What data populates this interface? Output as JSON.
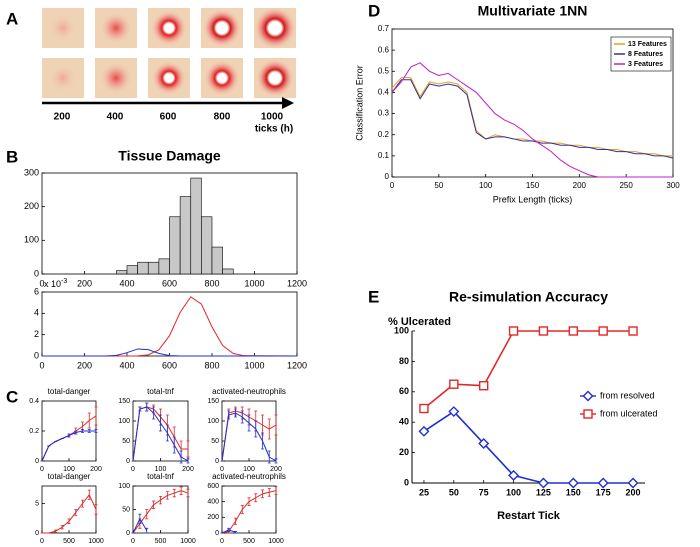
{
  "panel_labels": [
    "A",
    "B",
    "C",
    "D",
    "E"
  ],
  "timeline": {
    "ticks": [
      200,
      400,
      600,
      800,
      1000
    ],
    "label": "ticks (h)"
  },
  "chart_data": [
    {
      "type": "histogram",
      "title": "Tissue Damage",
      "bins": [
        350,
        400,
        450,
        500,
        550,
        600,
        650,
        700,
        750,
        800,
        850,
        900
      ],
      "values": [
        10,
        25,
        35,
        35,
        45,
        170,
        230,
        285,
        170,
        80,
        15
      ],
      "color": "#c8c8c8",
      "xlim": [
        0,
        1200
      ],
      "xticks": [
        0,
        200,
        400,
        600,
        800,
        1000,
        1200
      ],
      "ylim": [
        0,
        300
      ],
      "yticks": [
        0,
        100,
        200,
        300
      ]
    },
    {
      "type": "line",
      "y_multiplier": "x 10",
      "y_multiplier_exp": "-3",
      "x": [
        0,
        300,
        350,
        400,
        450,
        500,
        550,
        600,
        650,
        700,
        750,
        800,
        850,
        900,
        950,
        1200
      ],
      "series": [
        {
          "color": "#e02828",
          "values": [
            0,
            0,
            0,
            0.001,
            0.014,
            0.11,
            0.58,
            1.9,
            4.08,
            5.55,
            4.87,
            2.73,
            0.98,
            0.23,
            0.03,
            0
          ]
        },
        {
          "color": "#2030d0",
          "values": [
            0,
            0.004,
            0.06,
            0.31,
            0.66,
            0.6,
            0.25,
            0.04,
            0,
            0,
            0,
            0,
            0,
            0,
            0,
            0
          ]
        }
      ],
      "xlim": [
        0,
        1200
      ],
      "xticks": [
        0,
        200,
        400,
        600,
        800,
        1000,
        1200
      ],
      "ylim": [
        0,
        6
      ],
      "yticks": [
        0,
        2,
        4,
        6
      ]
    },
    {
      "type": "line",
      "title": "total-danger",
      "x": [
        0,
        25,
        50,
        75,
        100,
        125,
        150,
        175,
        200
      ],
      "series": [
        {
          "color": "#e02828",
          "values": [
            0,
            0.1,
            0.13,
            0.15,
            0.17,
            0.2,
            0.23,
            0.27,
            0.3
          ],
          "errors": [
            0,
            0,
            0,
            0,
            0.01,
            0.02,
            0.03,
            0.05,
            0.06
          ]
        },
        {
          "color": "#2030d0",
          "values": [
            0,
            0.1,
            0.13,
            0.15,
            0.17,
            0.19,
            0.2,
            0.2,
            0.2
          ],
          "errors": [
            0,
            0,
            0,
            0,
            0.01,
            0.01,
            0.01,
            0.01,
            0.01
          ]
        }
      ],
      "xlim": [
        0,
        200
      ],
      "xticks": [
        0,
        100,
        200
      ],
      "ylim": [
        0,
        0.4
      ],
      "yticks": [
        0,
        0.2,
        0.4
      ]
    },
    {
      "type": "line",
      "title": "total-tnf",
      "x": [
        0,
        25,
        50,
        75,
        100,
        125,
        150,
        175,
        200
      ],
      "series": [
        {
          "color": "#e02828",
          "values": [
            0,
            130,
            135,
            130,
            110,
            90,
            60,
            30,
            30
          ],
          "errors": [
            0,
            5,
            10,
            10,
            20,
            25,
            25,
            20,
            20
          ]
        },
        {
          "color": "#2030d0",
          "values": [
            0,
            130,
            135,
            120,
            95,
            70,
            40,
            10,
            0
          ],
          "errors": [
            0,
            5,
            10,
            15,
            20,
            20,
            20,
            15,
            5
          ]
        }
      ],
      "xlim": [
        0,
        200
      ],
      "xticks": [
        0,
        100,
        200
      ],
      "ylim": [
        0,
        150
      ],
      "yticks": [
        0,
        50,
        100,
        150
      ]
    },
    {
      "type": "line",
      "title": "activated-neutrophils",
      "x": [
        0,
        25,
        50,
        75,
        100,
        125,
        150,
        175,
        200
      ],
      "series": [
        {
          "color": "#e02828",
          "values": [
            0,
            120,
            125,
            120,
            110,
            100,
            90,
            80,
            90
          ],
          "errors": [
            0,
            10,
            10,
            15,
            20,
            25,
            25,
            25,
            25
          ]
        },
        {
          "color": "#2030d0",
          "values": [
            0,
            115,
            120,
            110,
            95,
            80,
            50,
            10,
            0
          ],
          "errors": [
            0,
            10,
            10,
            15,
            20,
            20,
            20,
            15,
            5
          ]
        }
      ],
      "xlim": [
        0,
        200
      ],
      "xticks": [
        0,
        100,
        200
      ],
      "ylim": [
        0,
        150
      ],
      "yticks": [
        0,
        50,
        100,
        150
      ]
    },
    {
      "type": "line",
      "title": "total-danger",
      "x": [
        0,
        125,
        250,
        375,
        500,
        625,
        750,
        875,
        1000
      ],
      "series": [
        {
          "color": "#e02828",
          "values": [
            0,
            0,
            0.3,
            1,
            2,
            3.5,
            5,
            6.5,
            4
          ],
          "errors": [
            0,
            0,
            0.2,
            0.3,
            0.4,
            0.5,
            0.6,
            0.8,
            0.8
          ]
        }
      ],
      "xlim": [
        0,
        1000
      ],
      "xticks": [
        0,
        500,
        1000
      ],
      "ylim": [
        0,
        8
      ],
      "yticks": [
        0,
        5
      ]
    },
    {
      "type": "line",
      "title": "total-tnf",
      "x": [
        0,
        125,
        250,
        375,
        500,
        625,
        750,
        875,
        1000
      ],
      "series": [
        {
          "color": "#e02828",
          "values": [
            0,
            20,
            40,
            60,
            70,
            80,
            85,
            90,
            85
          ],
          "errors": [
            0,
            10,
            10,
            8,
            8,
            8,
            8,
            8,
            8
          ]
        },
        {
          "color": "#2030d0",
          "values": [
            0,
            30,
            5,
            null,
            null,
            null,
            null,
            null,
            null
          ],
          "errors": [
            0,
            10,
            5,
            null,
            null,
            null,
            null,
            null,
            null
          ]
        }
      ],
      "xlim": [
        0,
        1000
      ],
      "xticks": [
        0,
        500,
        1000
      ],
      "ylim": [
        0,
        100
      ],
      "yticks": [
        0,
        50,
        100
      ]
    },
    {
      "type": "line",
      "title": "activated-neutrophils",
      "x": [
        0,
        125,
        250,
        375,
        500,
        625,
        750,
        875,
        1000
      ],
      "series": [
        {
          "color": "#e02828",
          "values": [
            0,
            20,
            150,
            300,
            400,
            450,
            500,
            520,
            540
          ],
          "errors": [
            0,
            20,
            40,
            50,
            50,
            50,
            50,
            50,
            50
          ]
        },
        {
          "color": "#2030d0",
          "values": [
            0,
            40,
            10,
            null,
            null,
            null,
            null,
            null,
            null
          ],
          "errors": [
            0,
            20,
            10,
            null,
            null,
            null,
            null,
            null,
            null
          ]
        }
      ],
      "xlim": [
        0,
        1000
      ],
      "xticks": [
        0,
        500,
        1000
      ],
      "ylim": [
        0,
        600
      ],
      "yticks": [
        0,
        200,
        400,
        600
      ]
    },
    {
      "type": "line",
      "title": "Multivariate 1NN",
      "xlabel": "Prefix Length (ticks)",
      "ylabel": "Classification Error",
      "legend": "upper right",
      "x": [
        0,
        10,
        20,
        30,
        40,
        50,
        60,
        70,
        80,
        90,
        100,
        110,
        120,
        130,
        140,
        150,
        160,
        170,
        180,
        190,
        200,
        210,
        220,
        230,
        240,
        250,
        260,
        270,
        280,
        290,
        300
      ],
      "series": [
        {
          "name": "13 Features",
          "color": "#e8a020",
          "values": [
            0.42,
            0.47,
            0.47,
            0.38,
            0.45,
            0.44,
            0.45,
            0.44,
            0.4,
            0.22,
            0.18,
            0.2,
            0.19,
            0.18,
            0.18,
            0.17,
            0.17,
            0.16,
            0.16,
            0.15,
            0.15,
            0.14,
            0.14,
            0.13,
            0.13,
            0.12,
            0.12,
            0.11,
            0.11,
            0.1,
            0.1
          ]
        },
        {
          "name": "8 Features",
          "color": "#30309a",
          "values": [
            0.4,
            0.46,
            0.46,
            0.37,
            0.44,
            0.43,
            0.44,
            0.43,
            0.39,
            0.21,
            0.18,
            0.19,
            0.19,
            0.18,
            0.17,
            0.17,
            0.16,
            0.16,
            0.15,
            0.15,
            0.14,
            0.14,
            0.13,
            0.13,
            0.12,
            0.12,
            0.11,
            0.11,
            0.1,
            0.1,
            0.09
          ]
        },
        {
          "name": "3 Features",
          "color": "#c020c0",
          "values": [
            0.4,
            0.45,
            0.52,
            0.54,
            0.5,
            0.48,
            0.49,
            0.46,
            0.43,
            0.4,
            0.35,
            0.3,
            0.27,
            0.25,
            0.22,
            0.18,
            0.15,
            0.12,
            0.08,
            0.05,
            0.03,
            0.01,
            0,
            0,
            0,
            0,
            0,
            0,
            0,
            0,
            0
          ]
        }
      ],
      "xlim": [
        0,
        300
      ],
      "xticks": [
        0,
        50,
        100,
        150,
        200,
        250,
        300
      ],
      "ylim": [
        0,
        0.7
      ],
      "yticks": [
        0,
        0.1,
        0.2,
        0.3,
        0.4,
        0.5,
        0.6,
        0.7
      ]
    },
    {
      "type": "line",
      "title": "Re-simulation Accuracy",
      "xlabel": "Restart Tick",
      "ylabel": "% Ulcerated",
      "legend": "center right",
      "x": [
        25,
        50,
        75,
        100,
        125,
        150,
        175,
        200
      ],
      "series": [
        {
          "name": "from resolved",
          "color": "#2030d0",
          "marker": "diamond",
          "values": [
            34,
            47,
            26,
            5,
            0,
            0,
            0,
            0
          ]
        },
        {
          "name": "from ulcerated",
          "color": "#e02828",
          "marker": "square",
          "values": [
            49,
            65,
            64,
            100,
            100,
            100,
            100,
            100
          ]
        }
      ],
      "xlim": [
        15,
        210
      ],
      "xticks": [
        25,
        50,
        75,
        100,
        125,
        150,
        175,
        200
      ],
      "ylim": [
        0,
        100
      ],
      "yticks": [
        0,
        20,
        40,
        60,
        80,
        100
      ]
    }
  ]
}
